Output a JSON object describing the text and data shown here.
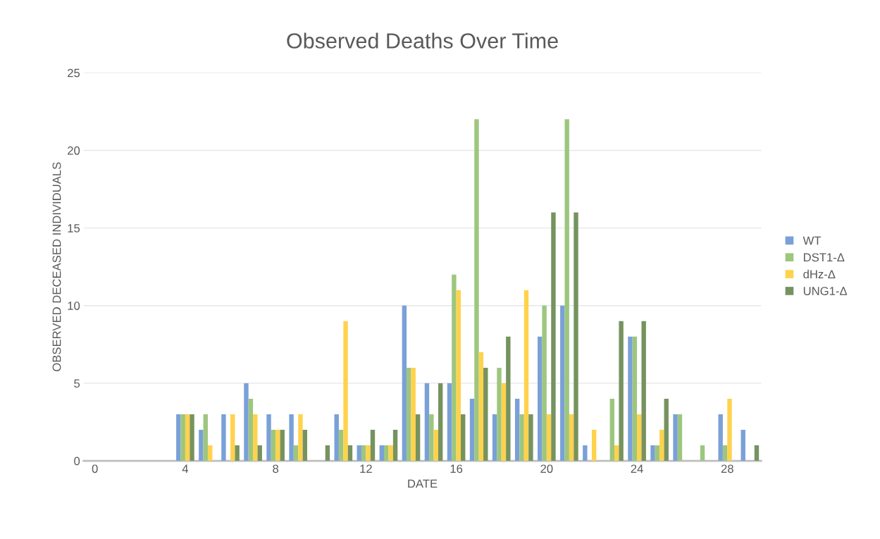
{
  "chart_data": {
    "type": "bar",
    "title": "Observed Deaths Over Time",
    "xlabel": "DATE",
    "ylabel": "OBSERVED DECEASED INDIVIDUALS",
    "categories": [
      "0",
      null,
      null,
      null,
      "4",
      null,
      null,
      null,
      "8",
      null,
      null,
      null,
      "12",
      null,
      null,
      null,
      "16",
      null,
      null,
      null,
      "20",
      null,
      null,
      null,
      "24",
      null,
      null,
      null,
      "28",
      null
    ],
    "series": [
      {
        "name": "WT",
        "color": "#7aa0d8",
        "values": [
          0,
          0,
          0,
          0,
          3,
          2,
          3,
          5,
          3,
          3,
          0,
          3,
          1,
          1,
          10,
          5,
          5,
          4,
          3,
          4,
          8,
          10,
          1,
          0,
          8,
          1,
          3,
          0,
          3,
          2
        ]
      },
      {
        "name": "DST1-Δ",
        "color": "#9dc67e",
        "values": [
          0,
          0,
          0,
          0,
          3,
          3,
          0,
          4,
          2,
          1,
          0,
          2,
          1,
          1,
          6,
          3,
          12,
          22,
          6,
          3,
          10,
          22,
          0,
          4,
          8,
          1,
          3,
          1,
          1,
          0
        ]
      },
      {
        "name": "dHz-Δ",
        "color": "#ffd24c",
        "values": [
          0,
          0,
          0,
          0,
          3,
          1,
          3,
          3,
          2,
          3,
          0,
          9,
          1,
          1,
          6,
          2,
          11,
          7,
          5,
          11,
          3,
          3,
          2,
          1,
          3,
          2,
          0,
          0,
          4,
          0
        ]
      },
      {
        "name": "UNG1-Δ",
        "color": "#76935f",
        "values": [
          0,
          0,
          0,
          0,
          3,
          0,
          1,
          1,
          2,
          2,
          1,
          1,
          2,
          2,
          3,
          5,
          3,
          6,
          8,
          3,
          16,
          16,
          0,
          9,
          9,
          4,
          0,
          0,
          0,
          1
        ]
      }
    ],
    "ylim": [
      0,
      25
    ],
    "yticks": [
      0,
      5,
      10,
      15,
      20,
      25
    ],
    "grid": "y",
    "legend": "right"
  }
}
